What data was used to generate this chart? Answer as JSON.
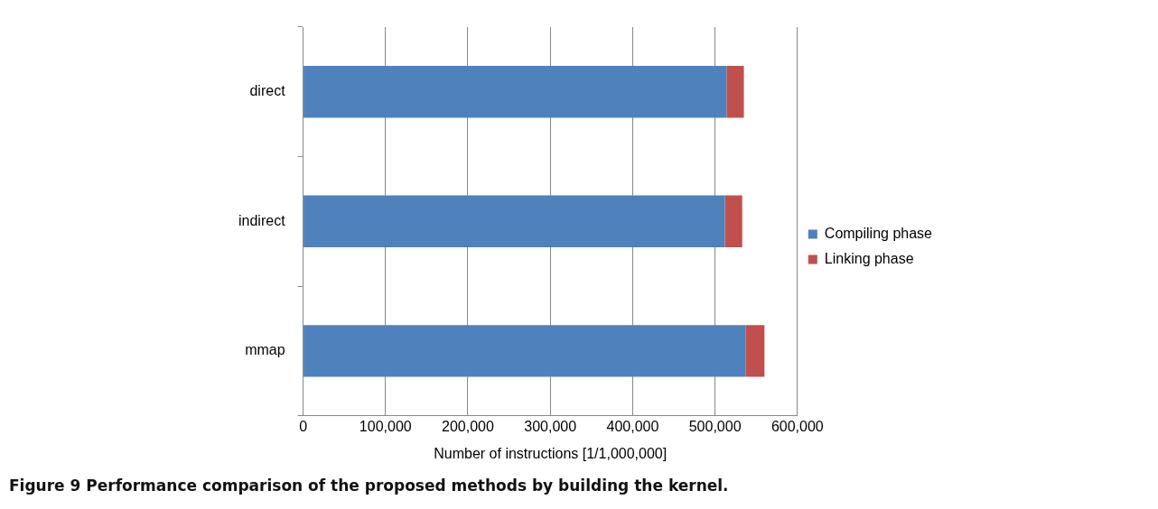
{
  "chart_data": {
    "type": "bar",
    "orientation": "horizontal",
    "stacked": true,
    "title": "Figure 9 Performance comparison of the proposed methods by building the kernel.",
    "xlabel": "Number of instructions [1/1,000,000]",
    "categories": [
      "direct",
      "indirect",
      "mmap"
    ],
    "series": [
      {
        "name": "Compiling phase",
        "color": "#4f81bd",
        "values": [
          514000,
          512000,
          537000
        ]
      },
      {
        "name": "Linking phase",
        "color": "#c0504d",
        "values": [
          21000,
          21000,
          23000
        ]
      }
    ],
    "xlim": [
      0,
      600000
    ],
    "xticks": [
      0,
      {
        "value": 100000,
        "label": "100,000"
      },
      {
        "value": 200000,
        "label": "200,000"
      },
      {
        "value": 300000,
        "label": "300,000"
      },
      {
        "value": 400000,
        "label": "400,000"
      },
      {
        "value": 500000,
        "label": "500,000"
      },
      {
        "value": 600000,
        "label": "600,000"
      }
    ],
    "grid": "x",
    "legend": "right"
  }
}
